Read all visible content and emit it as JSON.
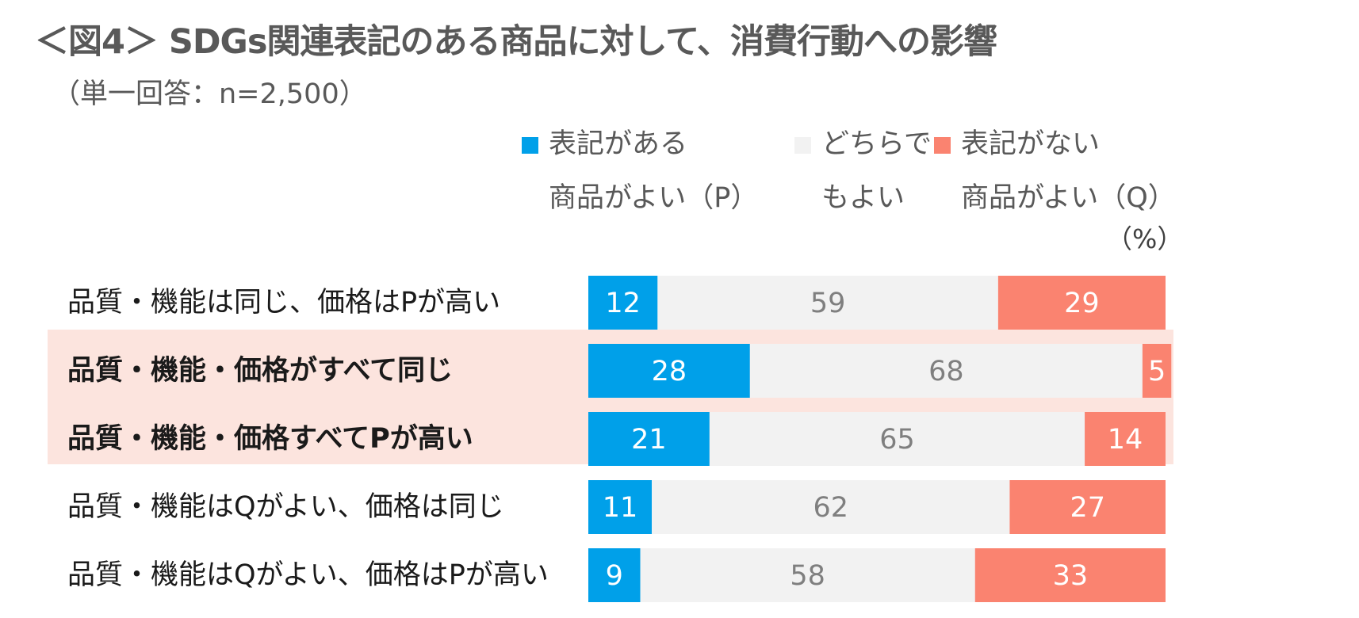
{
  "title": "＜図4＞ SDGs関連表記のある商品に対して、消費行動への影響",
  "subtitle": "（単一回答：n=2,500）",
  "unit_label": "（%）",
  "colors": {
    "p": "#00a0e9",
    "neutral": "#f2f2f2",
    "q": "#fa8370",
    "highlight": "#fce4de"
  },
  "legend": [
    {
      "line1": "表記がある",
      "line2": "商品がよい（P）",
      "color": "#00a0e9"
    },
    {
      "line1": "どちらで",
      "line2": "もよい",
      "color": "#f2f2f2"
    },
    {
      "line1": "表記がない",
      "line2": "商品がよい（Q）",
      "color": "#fa8370"
    }
  ],
  "chart_data": {
    "type": "bar",
    "orientation": "horizontal",
    "stacked": true,
    "categories": [
      "品質・機能は同じ、価格はPが高い",
      "品質・機能・価格がすべて同じ",
      "品質・機能・価格すべてPが高い",
      "品質・機能はQがよい、価格は同じ",
      "品質・機能はQがよい、価格はPが高い"
    ],
    "highlighted": [
      false,
      true,
      true,
      false,
      false
    ],
    "series": [
      {
        "name": "表記がある商品がよい（P）",
        "values": [
          12,
          28,
          21,
          11,
          9
        ]
      },
      {
        "name": "どちらでもよい",
        "values": [
          59,
          68,
          65,
          62,
          58
        ]
      },
      {
        "name": "表記がない商品がよい（Q）",
        "values": [
          29,
          5,
          14,
          27,
          33
        ]
      }
    ],
    "xlim": [
      0,
      100
    ],
    "title": "＜図4＞ SDGs関連表記のある商品に対して、消費行動への影響",
    "xlabel": "",
    "ylabel": ""
  }
}
